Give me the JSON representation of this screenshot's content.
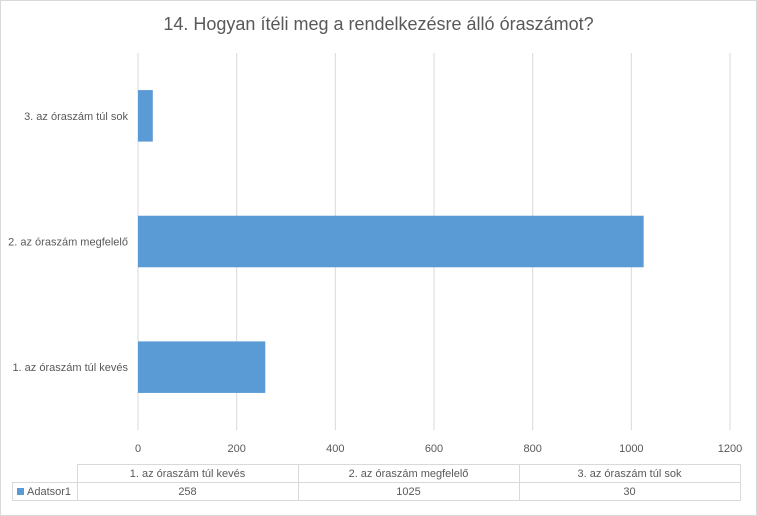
{
  "chart_data": {
    "type": "bar",
    "orientation": "horizontal",
    "title": "14. Hogyan ítéli meg a rendelkezésre álló óraszámot?",
    "categories": [
      "1. az óraszám túl kevés",
      "2. az óraszám megfelelő",
      "3. az óraszám túl sok"
    ],
    "series": [
      {
        "name": "Adatsor1",
        "values": [
          258,
          1025,
          30
        ],
        "color": "#5b9bd5"
      }
    ],
    "xlim": [
      0,
      1200
    ],
    "xticks": [
      0,
      200,
      400,
      600,
      800,
      1000,
      1200
    ],
    "grid": true,
    "data_table": true
  }
}
